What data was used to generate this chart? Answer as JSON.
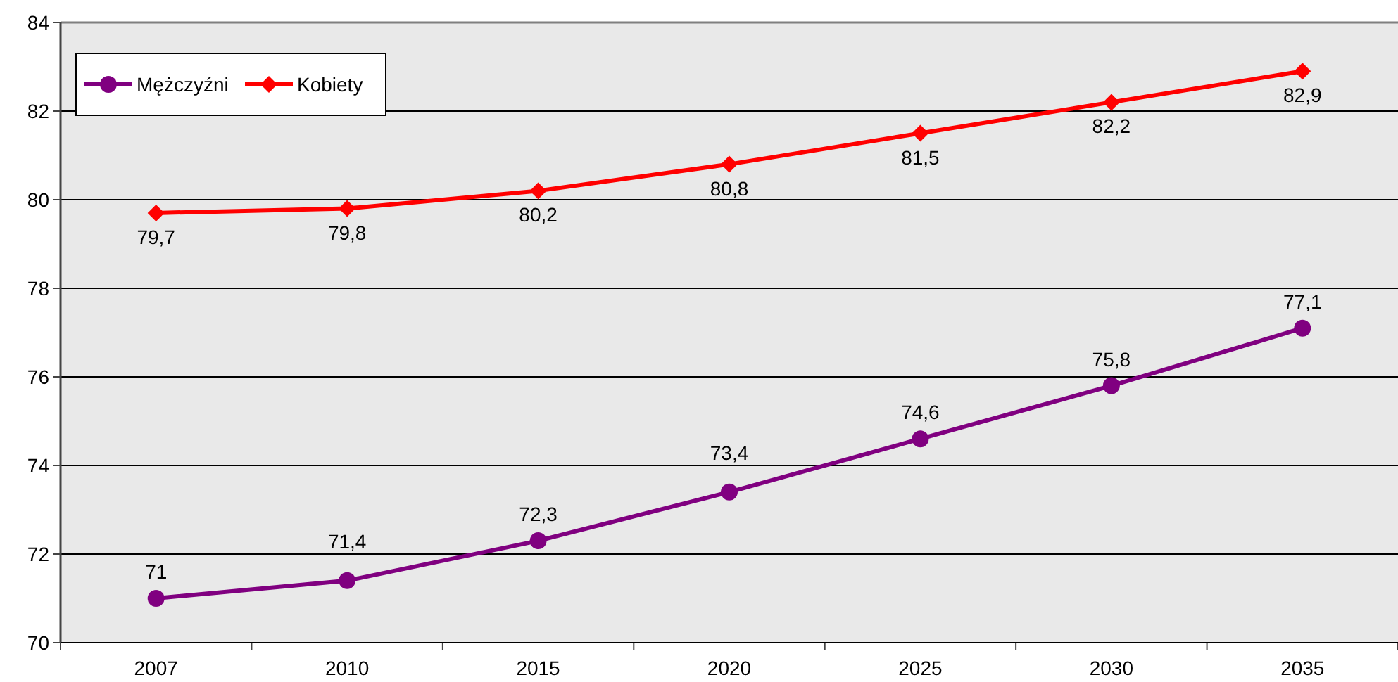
{
  "chart_data": {
    "type": "line",
    "categories": [
      "2007",
      "2010",
      "2015",
      "2020",
      "2025",
      "2030",
      "2035"
    ],
    "series": [
      {
        "name": "Mężczyźni",
        "color": "#800080",
        "marker": "circle",
        "values": [
          71,
          71.4,
          72.3,
          73.4,
          74.6,
          75.8,
          77.1
        ],
        "value_labels": [
          "71",
          "71,4",
          "72,3",
          "73,4",
          "74,6",
          "75,8",
          "77,1"
        ]
      },
      {
        "name": "Kobiety",
        "color": "#ff0000",
        "marker": "diamond",
        "values": [
          79.7,
          79.8,
          80.2,
          80.8,
          81.5,
          82.2,
          82.9
        ],
        "value_labels": [
          "79,7",
          "79,8",
          "80,2",
          "80,8",
          "81,5",
          "82,2",
          "82,9"
        ]
      }
    ],
    "ylim": [
      70,
      84
    ],
    "yticks": [
      70,
      72,
      74,
      76,
      78,
      80,
      82,
      84
    ],
    "grid": "y",
    "legend": "top left"
  }
}
